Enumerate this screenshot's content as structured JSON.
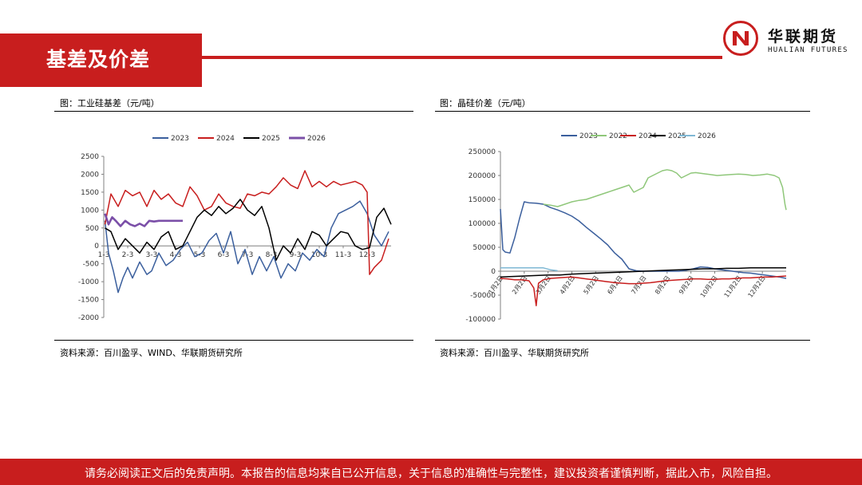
{
  "header": {
    "title": "基差及价差"
  },
  "logo": {
    "cn": "华联期货",
    "en": "HUALIAN FUTURES"
  },
  "footer": {
    "disclaimer": "请务必阅读正文后的免责声明。本报告的信息均来自已公开信息，关于信息的准确性与完整性，建议投资者谨慎判断，据此入市，风险自担。"
  },
  "colors": {
    "brand_red": "#c81e1e"
  },
  "panels": [
    {
      "title": "图：工业硅基差（元/吨）",
      "source": "资料来源：百川盈孚、WIND、华联期货研究所"
    },
    {
      "title": "图：晶硅价差（元/吨）",
      "source": "资料来源：百川盈孚、华联期货研究所"
    }
  ],
  "chart_data": [
    {
      "type": "line",
      "title": "",
      "xlabel": "",
      "ylabel": "",
      "ylim": [
        -2000,
        2500
      ],
      "yticks": [
        2500,
        2000,
        1500,
        1000,
        500,
        0,
        -500,
        -1000,
        -1500,
        -2000
      ],
      "xticks": [
        "1-3",
        "2-3",
        "3-3",
        "4-3",
        "5-3",
        "6-3",
        "7-3",
        "8-3",
        "9-3",
        "10-3",
        "11-3",
        "12-3"
      ],
      "x_domain": [
        0,
        12
      ],
      "legend": "top",
      "series": [
        {
          "name": "2023",
          "color": "#3b5f9d",
          "x": [
            0.05,
            0.2,
            0.4,
            0.6,
            0.8,
            1,
            1.2,
            1.5,
            1.8,
            2,
            2.3,
            2.6,
            2.9,
            3.2,
            3.5,
            3.8,
            4.1,
            4.4,
            4.7,
            5,
            5.3,
            5.6,
            5.9,
            6.2,
            6.5,
            6.8,
            7.1,
            7.4,
            7.7,
            8,
            8.3,
            8.6,
            8.9,
            9.2,
            9.5,
            9.8,
            10.1,
            10.4,
            10.7,
            11,
            11.3,
            11.6,
            11.9
          ],
          "y": [
            700,
            -200,
            -700,
            -1300,
            -900,
            -600,
            -900,
            -450,
            -800,
            -700,
            -200,
            -550,
            -400,
            -100,
            100,
            -300,
            -200,
            150,
            350,
            -200,
            400,
            -500,
            -100,
            -800,
            -300,
            -700,
            -300,
            -900,
            -500,
            -700,
            -200,
            -400,
            -100,
            -300,
            500,
            900,
            1000,
            1100,
            1250,
            900,
            300,
            0,
            400
          ]
        },
        {
          "name": "2024",
          "color": "#c81e1e",
          "x": [
            0.05,
            0.3,
            0.6,
            0.9,
            1.2,
            1.5,
            1.8,
            2.1,
            2.4,
            2.7,
            3,
            3.3,
            3.6,
            3.9,
            4.2,
            4.5,
            4.8,
            5.1,
            5.4,
            5.7,
            6,
            6.3,
            6.6,
            6.9,
            7.2,
            7.5,
            7.8,
            8.1,
            8.4,
            8.7,
            9,
            9.3,
            9.6,
            9.9,
            10.2,
            10.5,
            10.8,
            11,
            11.1,
            11.3,
            11.6,
            11.9
          ],
          "y": [
            600,
            1450,
            1100,
            1550,
            1400,
            1500,
            1100,
            1550,
            1300,
            1450,
            1200,
            1100,
            1650,
            1400,
            1000,
            1100,
            1450,
            1200,
            1100,
            1050,
            1450,
            1400,
            1500,
            1450,
            1650,
            1900,
            1700,
            1600,
            2100,
            1650,
            1800,
            1650,
            1800,
            1700,
            1750,
            1800,
            1700,
            1500,
            -800,
            -600,
            -400,
            200
          ]
        },
        {
          "name": "2025",
          "color": "#000000",
          "x": [
            0.05,
            0.3,
            0.6,
            0.9,
            1.2,
            1.5,
            1.8,
            2.1,
            2.4,
            2.7,
            3,
            3.3,
            3.6,
            3.9,
            4.2,
            4.5,
            4.8,
            5.1,
            5.4,
            5.7,
            6,
            6.3,
            6.6,
            6.9,
            7.2,
            7.5,
            7.8,
            8.1,
            8.4,
            8.7,
            9,
            9.3,
            9.6,
            9.9,
            10.2,
            10.5,
            10.8,
            11.1,
            11.4,
            11.7,
            12
          ],
          "y": [
            500,
            400,
            -100,
            200,
            0,
            -200,
            100,
            -100,
            250,
            400,
            -100,
            0,
            400,
            800,
            1000,
            850,
            1100,
            900,
            1050,
            1300,
            1000,
            850,
            1100,
            500,
            -400,
            0,
            -200,
            200,
            -100,
            400,
            300,
            0,
            200,
            400,
            350,
            0,
            -100,
            -50,
            800,
            1050,
            600
          ]
        },
        {
          "name": "2026",
          "color": "#7b4fa8",
          "x": [
            0.05,
            0.2,
            0.35,
            0.5,
            0.7,
            0.9,
            1.1,
            1.3,
            1.5,
            1.7,
            1.9,
            2.1,
            2.3,
            2.5,
            2.7,
            2.9,
            3.1,
            3.3
          ],
          "y": [
            900,
            600,
            800,
            700,
            550,
            700,
            600,
            550,
            620,
            550,
            700,
            680,
            700,
            700,
            700,
            700,
            700,
            700
          ]
        }
      ]
    },
    {
      "type": "line",
      "title": "",
      "xlabel": "",
      "ylabel": "",
      "ylim": [
        -100000,
        250000
      ],
      "yticks": [
        250000,
        200000,
        150000,
        100000,
        50000,
        0,
        -50000,
        -100000
      ],
      "xticks": [
        "1月2日",
        "2月2日",
        "3月2日",
        "4月2日",
        "5月2日",
        "6月2日",
        "7月2日",
        "8月2日",
        "9月2日",
        "10月2日",
        "11月2日",
        "12月2日"
      ],
      "x_domain": [
        0,
        12
      ],
      "legend": "top",
      "series": [
        {
          "name": "2023",
          "color": "#3b5f9d",
          "x": [
            0,
            0.1,
            0.2,
            0.4,
            0.6,
            0.8,
            1,
            1.2,
            1.5,
            1.8,
            2.1,
            2.4,
            2.7,
            3,
            3.3,
            3.6,
            3.9,
            4.2,
            4.5,
            4.8,
            5.1,
            5.4,
            5.7,
            6,
            6.3,
            6.6,
            6.9,
            7.2,
            7.5,
            7.8,
            8.1,
            8.4,
            8.7,
            9,
            9.3,
            9.6,
            9.9,
            10.2,
            10.5,
            10.8,
            11.1,
            11.4,
            11.7,
            12
          ],
          "y": [
            130000,
            45000,
            40000,
            38000,
            70000,
            110000,
            145000,
            143000,
            142000,
            140000,
            133000,
            128000,
            122000,
            115000,
            105000,
            92000,
            80000,
            68000,
            55000,
            38000,
            25000,
            5000,
            1000,
            0,
            0,
            0,
            0,
            0,
            0,
            2000,
            5000,
            9000,
            8000,
            5000,
            3000,
            1000,
            -1000,
            -3000,
            -4000,
            -6000,
            -8000,
            -10000,
            -12000,
            -15000
          ]
        },
        {
          "name": "2022",
          "color": "#8fc77a",
          "x": [
            1.8,
            2.1,
            2.4,
            2.7,
            3,
            3.3,
            3.6,
            3.9,
            4.2,
            4.5,
            4.8,
            5.1,
            5.4,
            5.6,
            5.8,
            6,
            6.2,
            6.4,
            6.6,
            6.8,
            7,
            7.2,
            7.4,
            7.6,
            7.8,
            8,
            8.2,
            8.5,
            8.8,
            9.1,
            9.4,
            9.7,
            10,
            10.3,
            10.6,
            10.9,
            11.2,
            11.5,
            11.7,
            11.85,
            11.95,
            12
          ],
          "y": [
            140000,
            138000,
            135000,
            140000,
            145000,
            148000,
            150000,
            155000,
            160000,
            165000,
            170000,
            175000,
            180000,
            165000,
            170000,
            175000,
            195000,
            200000,
            205000,
            210000,
            212000,
            210000,
            205000,
            195000,
            200000,
            205000,
            206000,
            204000,
            202000,
            200000,
            201000,
            202000,
            203000,
            202000,
            200000,
            201000,
            203000,
            200000,
            195000,
            175000,
            140000,
            128000
          ]
        },
        {
          "name": "2024",
          "color": "#c81e1e",
          "x": [
            0,
            0.3,
            0.6,
            0.9,
            1.2,
            1.4,
            1.5,
            1.6,
            1.8,
            2.1,
            2.4,
            2.7,
            3,
            3.3,
            3.6,
            3.9,
            4.2,
            4.5,
            4.8,
            5.1,
            5.4,
            5.7,
            6,
            6.3,
            6.6,
            6.9,
            7.2,
            7.5,
            7.8,
            8.1,
            8.4,
            8.7,
            9,
            9.3,
            9.6,
            9.9,
            10.2,
            10.5,
            10.8,
            11.1,
            11.4,
            11.7,
            12
          ],
          "y": [
            -15000,
            -16000,
            -18000,
            -18000,
            -20000,
            -35000,
            -72000,
            -25000,
            -18000,
            -15000,
            -14000,
            -13000,
            -12000,
            -14000,
            -16000,
            -18000,
            -20000,
            -22000,
            -24000,
            -25000,
            -26000,
            -26000,
            -25000,
            -24000,
            -22000,
            -20000,
            -19000,
            -18000,
            -17000,
            -16000,
            -16000,
            -17000,
            -17000,
            -16000,
            -16000,
            -15000,
            -14000,
            -14000,
            -13000,
            -12000,
            -12000,
            -11000,
            -10000
          ]
        },
        {
          "name": "2025",
          "color": "#000000",
          "x": [
            0,
            0.5,
            1,
            1.5,
            2,
            2.5,
            3,
            3.5,
            4,
            4.5,
            5,
            5.5,
            6,
            6.5,
            7,
            7.5,
            8,
            8.5,
            9,
            9.5,
            10,
            10.5,
            11,
            11.5,
            12
          ],
          "y": [
            -12000,
            -11000,
            -10000,
            -9000,
            -8000,
            -8000,
            -6000,
            -5000,
            -4000,
            -3000,
            -2000,
            -1000,
            0,
            1000,
            2000,
            3000,
            4000,
            5000,
            5000,
            6000,
            6000,
            7000,
            7000,
            7000,
            7000
          ]
        },
        {
          "name": "2026",
          "color": "#7fb8d4",
          "x": [
            0,
            0.3,
            0.6,
            0.9,
            1.2,
            1.5,
            1.8,
            2.1,
            2.4
          ],
          "y": [
            7000,
            7000,
            7000,
            7000,
            7000,
            7000,
            7000,
            3000,
            1000
          ]
        }
      ]
    }
  ]
}
